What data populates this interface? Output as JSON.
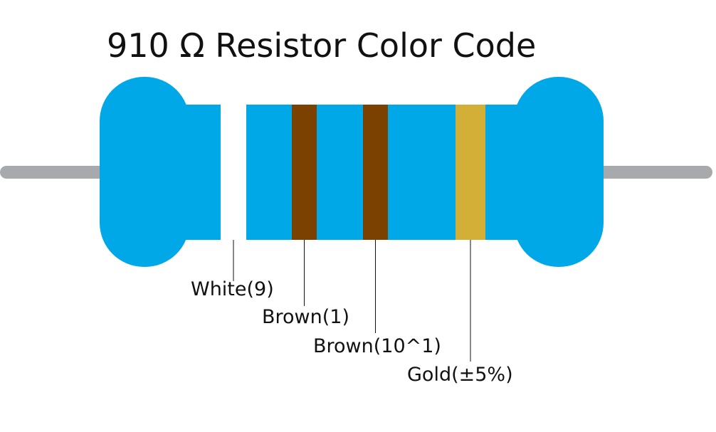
{
  "title": "910 Ω Resistor Color Code",
  "bands": [
    {
      "label": "White(9)",
      "color": "#ffffff"
    },
    {
      "label": "Brown(1)",
      "color": "#7b4100"
    },
    {
      "label": "Brown(10^1)",
      "color": "#7b4100"
    },
    {
      "label": "Gold(±5%)",
      "color": "#d4af37"
    }
  ]
}
